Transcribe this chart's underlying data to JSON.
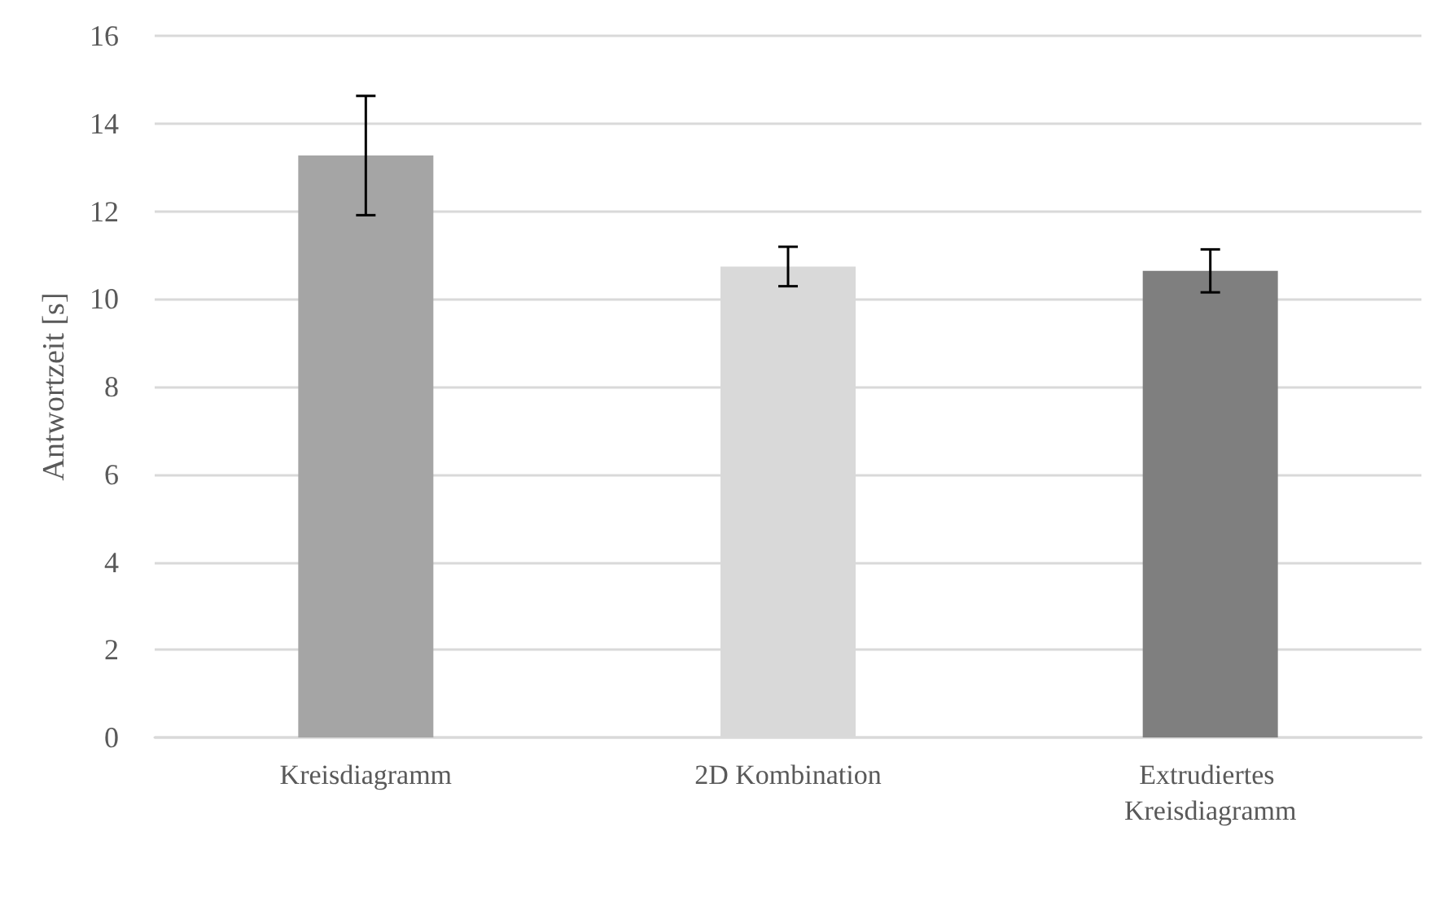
{
  "chart_data": {
    "type": "bar",
    "ylabel": "Antwortzeit [s]",
    "categories": [
      "Kreisdiagramm",
      "2D Kombination",
      "Extrudiertes Kreisdiagramm"
    ],
    "values": [
      13.27,
      10.74,
      10.64
    ],
    "colors": [
      "#a5a5a5",
      "#d9d9d9",
      "#7f7f7f"
    ],
    "errors": [
      1.36,
      0.45,
      0.49
    ],
    "ylim": [
      0,
      16
    ],
    "yticks": [
      0,
      2,
      4,
      6,
      8,
      10,
      12,
      14,
      16
    ],
    "grid": "y"
  }
}
